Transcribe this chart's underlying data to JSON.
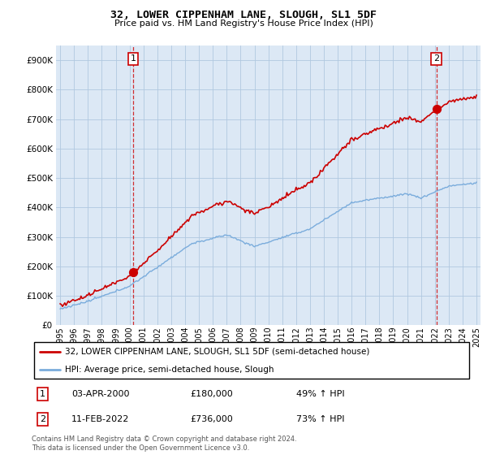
{
  "title": "32, LOWER CIPPENHAM LANE, SLOUGH, SL1 5DF",
  "subtitle": "Price paid vs. HM Land Registry's House Price Index (HPI)",
  "legend_label_red": "32, LOWER CIPPENHAM LANE, SLOUGH, SL1 5DF (semi-detached house)",
  "legend_label_blue": "HPI: Average price, semi-detached house, Slough",
  "footer": "Contains HM Land Registry data © Crown copyright and database right 2024.\nThis data is licensed under the Open Government Licence v3.0.",
  "annotation1_date": "03-APR-2000",
  "annotation1_price": "£180,000",
  "annotation1_hpi": "49% ↑ HPI",
  "annotation2_date": "11-FEB-2022",
  "annotation2_price": "£736,000",
  "annotation2_hpi": "73% ↑ HPI",
  "ylim": [
    0,
    950000
  ],
  "yticks": [
    0,
    100000,
    200000,
    300000,
    400000,
    500000,
    600000,
    700000,
    800000,
    900000
  ],
  "ytick_labels": [
    "£0",
    "£100K",
    "£200K",
    "£300K",
    "£400K",
    "£500K",
    "£600K",
    "£700K",
    "£800K",
    "£900K"
  ],
  "red_color": "#cc0000",
  "blue_color": "#7aacdc",
  "chart_bg": "#dce8f5",
  "background_color": "#ffffff",
  "grid_color": "#b0c8e0",
  "sale1_x": 2000.25,
  "sale1_y": 180000,
  "sale2_x": 2022.12,
  "sale2_y": 736000,
  "xlim_left": 1994.7,
  "xlim_right": 2025.3
}
